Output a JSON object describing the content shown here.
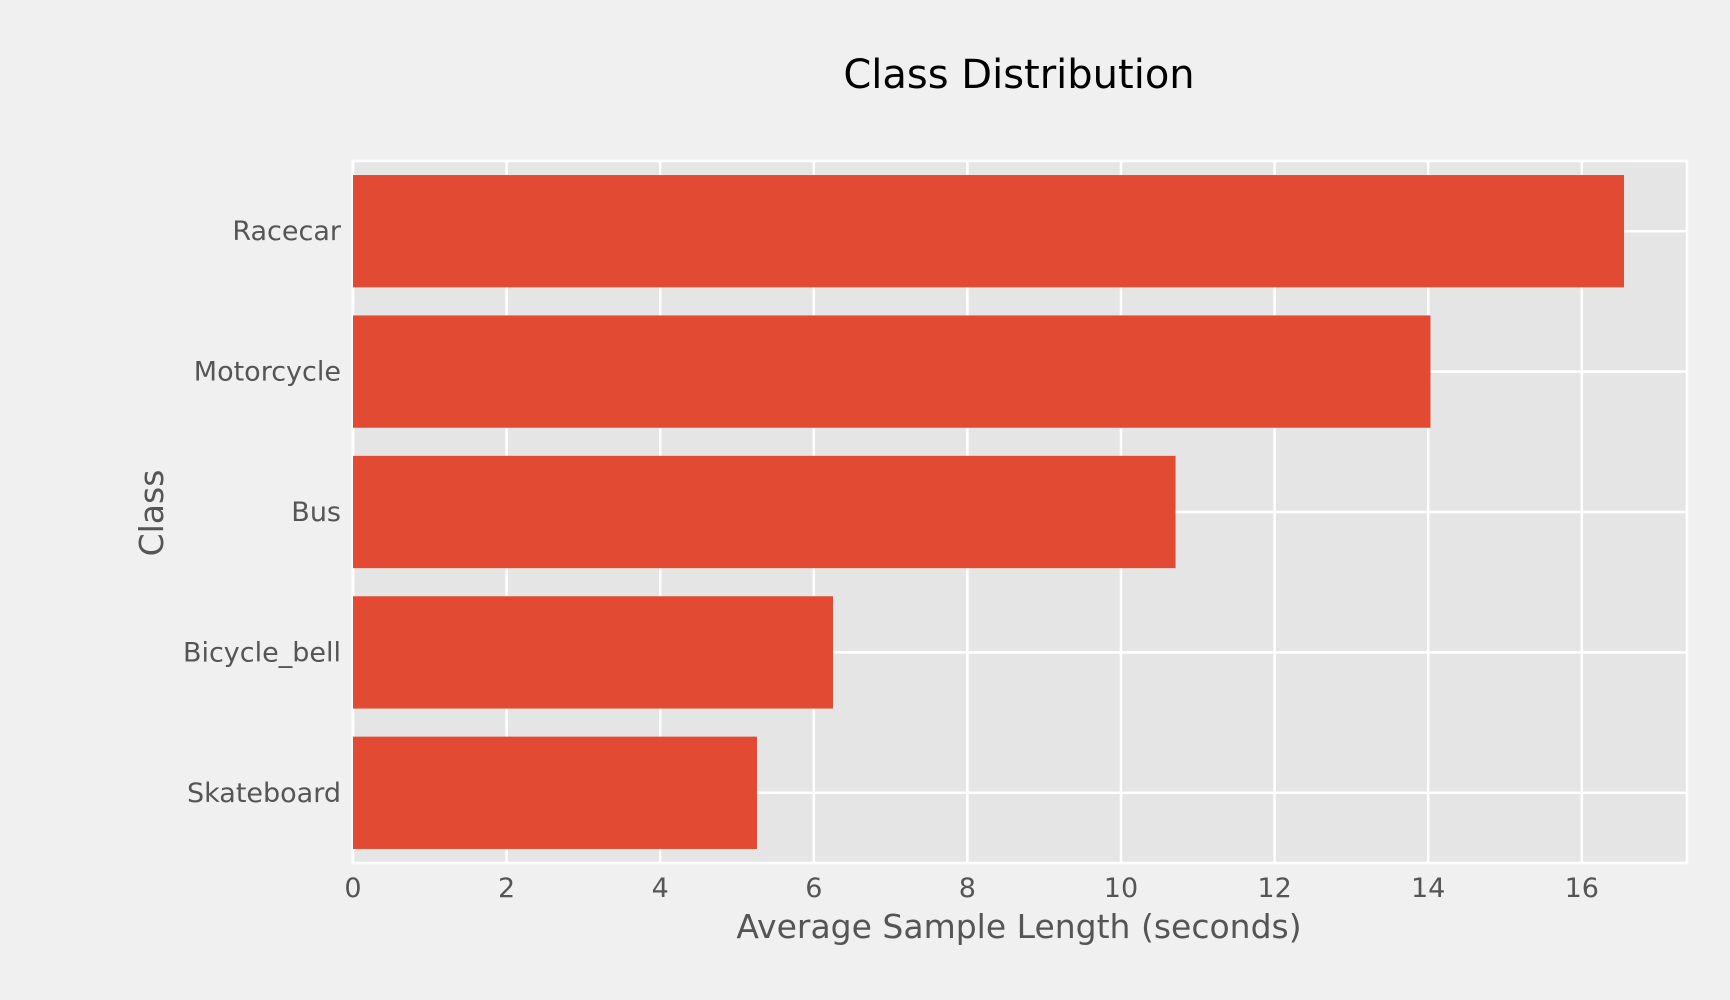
{
  "chart_data": {
    "type": "bar",
    "orientation": "horizontal",
    "title": "Class Distribution",
    "xlabel": "Average Sample Length (seconds)",
    "ylabel": "Class",
    "categories": [
      "Racecar",
      "Motorcycle",
      "Bus",
      "Bicycle_bell",
      "Skateboard"
    ],
    "values": [
      16.55,
      14.03,
      10.71,
      6.25,
      5.26
    ],
    "xlim": [
      0,
      17.37
    ],
    "xticks": [
      0,
      2,
      4,
      6,
      8,
      10,
      12,
      14,
      16
    ],
    "grid": true,
    "colors": {
      "bar": "#e24a33",
      "plot_background": "#e5e5e5",
      "figure_background": "#f0f0f0",
      "grid": "#ffffff",
      "text": "#555555",
      "title": "#000000"
    }
  }
}
